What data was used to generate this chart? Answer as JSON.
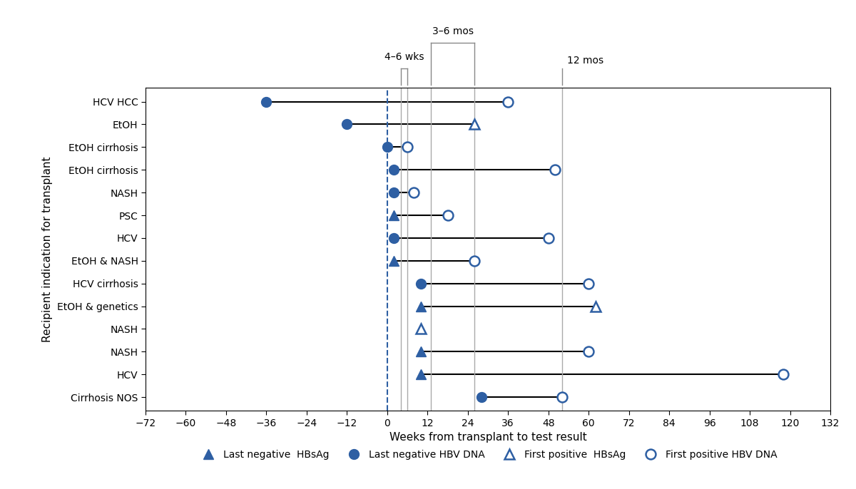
{
  "ylabel": "Recipient indication for transplant",
  "xlabel": "Weeks from transplant to test result",
  "xlim": [
    -72,
    132
  ],
  "xticks": [
    -72,
    -60,
    -48,
    -36,
    -24,
    -12,
    0,
    12,
    24,
    36,
    48,
    60,
    72,
    84,
    96,
    108,
    120,
    132
  ],
  "color": "#2E5FA3",
  "rows": [
    {
      "label": "HCV HCC",
      "filled_circle": -36,
      "open_circle": 36,
      "filled_triangle": null,
      "open_triangle": null
    },
    {
      "label": "EtOH",
      "filled_circle": -12,
      "open_circle": null,
      "filled_triangle": null,
      "open_triangle": 26
    },
    {
      "label": "EtOH cirrhosis",
      "filled_circle": 0,
      "open_circle": 6,
      "filled_triangle": null,
      "open_triangle": null
    },
    {
      "label": "EtOH cirrhosis",
      "filled_circle": 2,
      "open_circle": 50,
      "filled_triangle": null,
      "open_triangle": null
    },
    {
      "label": "NASH",
      "filled_circle": 2,
      "open_circle": 8,
      "filled_triangle": null,
      "open_triangle": null
    },
    {
      "label": "PSC",
      "filled_circle": null,
      "open_circle": 18,
      "filled_triangle": 2,
      "open_triangle": null
    },
    {
      "label": "HCV",
      "filled_circle": 2,
      "open_circle": 48,
      "filled_triangle": null,
      "open_triangle": null
    },
    {
      "label": "EtOH & NASH",
      "filled_circle": null,
      "open_circle": 26,
      "filled_triangle": 2,
      "open_triangle": null
    },
    {
      "label": "HCV cirrhosis",
      "filled_circle": 10,
      "open_circle": 60,
      "filled_triangle": null,
      "open_triangle": null
    },
    {
      "label": "EtOH & genetics",
      "filled_circle": null,
      "open_circle": null,
      "filled_triangle": 10,
      "open_triangle": 62
    },
    {
      "label": "NASH",
      "filled_circle": null,
      "open_circle": null,
      "filled_triangle": null,
      "open_triangle": 10
    },
    {
      "label": "NASH",
      "filled_circle": null,
      "open_circle": 60,
      "filled_triangle": 10,
      "open_triangle": null
    },
    {
      "label": "HCV",
      "filled_circle": null,
      "open_circle": 118,
      "filled_triangle": 10,
      "open_triangle": null
    },
    {
      "label": "Cirrhosis NOS",
      "filled_circle": 28,
      "open_circle": 52,
      "filled_triangle": null,
      "open_triangle": null
    }
  ],
  "vlines": {
    "wks46": [
      4,
      6
    ],
    "mos36": [
      13,
      26
    ],
    "mos12": 52
  },
  "bracket_46wks_label": "4–6 wks",
  "bracket_36mos_label": "3–6 mos",
  "bracket_12mos_label": "12 mos"
}
